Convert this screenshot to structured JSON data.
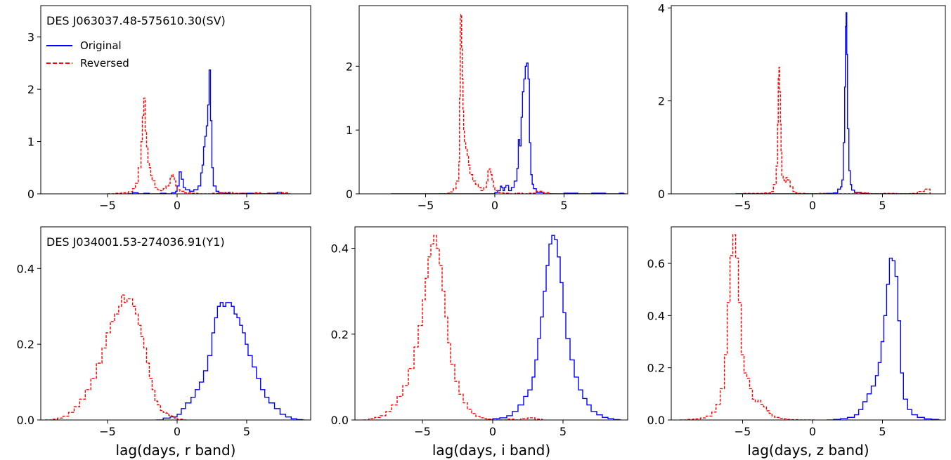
{
  "colors": {
    "original": "#0000ff",
    "reversed": "#ff0000"
  },
  "chart_data": [
    {
      "type": "line",
      "step": true,
      "annotation": "DES J063037.48-575610.30(SV)",
      "legend": {
        "placement": "top-left",
        "entries": [
          "Original",
          "Reversed"
        ]
      },
      "xlabel": "",
      "ylabel": "",
      "xlim": [
        -9.8,
        9.6
      ],
      "ylim": [
        0,
        3.6
      ],
      "xticks": [
        -5,
        0,
        5
      ],
      "yticks": [
        0,
        1,
        2,
        3
      ],
      "series": [
        {
          "name": "Original",
          "style": "solid",
          "x": [
            -3.6,
            -3.2,
            -2.8,
            -2.4,
            -2.0,
            -1.6,
            -1.2,
            -0.8,
            -0.4,
            -0.1,
            0.0,
            0.15,
            0.3,
            0.45,
            0.6,
            0.9,
            1.2,
            1.5,
            1.7,
            1.8,
            1.9,
            2.0,
            2.1,
            2.2,
            2.3,
            2.4,
            2.5,
            2.6,
            2.8,
            3.0,
            3.3,
            3.8,
            4.5,
            5.5,
            6.5,
            7.2,
            7.5,
            7.8
          ],
          "values": [
            0.0,
            0.02,
            0.0,
            0.01,
            0.0,
            0.0,
            0.01,
            0.0,
            0.02,
            0.05,
            0.15,
            0.42,
            0.28,
            0.12,
            0.08,
            0.05,
            0.08,
            0.15,
            0.4,
            0.55,
            0.9,
            1.1,
            1.3,
            1.7,
            2.37,
            1.4,
            0.5,
            0.15,
            0.05,
            0.02,
            0.01,
            0.0,
            0.01,
            0.0,
            0.01,
            0.03,
            0.0,
            0.0
          ]
        },
        {
          "name": "Reversed",
          "style": "dashed",
          "x": [
            -5.0,
            -4.5,
            -4.0,
            -3.5,
            -3.2,
            -3.0,
            -2.8,
            -2.6,
            -2.5,
            -2.4,
            -2.3,
            -2.2,
            -2.1,
            -2.0,
            -1.9,
            -1.8,
            -1.6,
            -1.4,
            -1.2,
            -1.0,
            -0.8,
            -0.6,
            -0.5,
            -0.4,
            -0.3,
            -0.2,
            -0.1,
            0.0,
            0.2,
            0.5,
            1.0,
            1.5,
            2.0,
            2.5,
            3.0,
            3.5,
            4.0,
            5.0,
            5.5,
            6.0,
            6.5,
            7.0,
            7.5,
            8.0
          ],
          "values": [
            0.0,
            0.01,
            0.02,
            0.04,
            0.1,
            0.2,
            0.5,
            1.0,
            1.5,
            1.83,
            1.2,
            0.9,
            0.6,
            0.5,
            0.35,
            0.25,
            0.12,
            0.08,
            0.06,
            0.1,
            0.15,
            0.2,
            0.3,
            0.37,
            0.33,
            0.25,
            0.15,
            0.08,
            0.05,
            0.02,
            0.01,
            0.0,
            0.0,
            0.01,
            0.02,
            0.03,
            0.01,
            0.0,
            0.02,
            0.0,
            0.01,
            0.0,
            0.02,
            0.0
          ]
        }
      ]
    },
    {
      "type": "line",
      "step": true,
      "annotation": "",
      "xlabel": "",
      "ylabel": "",
      "xlim": [
        -9.8,
        9.6
      ],
      "ylim": [
        0,
        2.95
      ],
      "xticks": [
        -5,
        0,
        5
      ],
      "yticks": [
        0,
        1,
        2
      ],
      "series": [
        {
          "name": "Original",
          "style": "solid",
          "x": [
            -7.5,
            -6.0,
            -4.0,
            -3.0,
            -2.0,
            -1.0,
            0.0,
            0.2,
            0.4,
            0.5,
            0.6,
            0.7,
            0.8,
            1.0,
            1.2,
            1.4,
            1.6,
            1.7,
            1.8,
            1.9,
            2.0,
            2.1,
            2.2,
            2.3,
            2.4,
            2.5,
            2.6,
            2.7,
            2.8,
            3.0,
            3.5,
            4.0,
            5.0,
            6.0,
            6.5,
            7.0,
            8.0,
            9.0,
            9.3
          ],
          "values": [
            0.0,
            0.0,
            0.0,
            0.0,
            0.0,
            0.0,
            0.02,
            0.05,
            0.12,
            0.1,
            0.05,
            0.1,
            0.13,
            0.05,
            0.1,
            0.2,
            0.4,
            0.85,
            0.75,
            1.2,
            1.6,
            1.8,
            2.0,
            2.05,
            1.8,
            0.8,
            0.3,
            0.15,
            0.08,
            0.02,
            0.0,
            0.0,
            0.01,
            0.0,
            0.0,
            0.01,
            0.0,
            0.01,
            0.0
          ]
        },
        {
          "name": "Reversed",
          "style": "dashed",
          "x": [
            -4.0,
            -3.5,
            -3.2,
            -3.0,
            -2.8,
            -2.6,
            -2.55,
            -2.5,
            -2.45,
            -2.4,
            -2.35,
            -2.3,
            -2.25,
            -2.2,
            -2.1,
            -2.0,
            -1.9,
            -1.8,
            -1.6,
            -1.4,
            -1.2,
            -1.0,
            -0.8,
            -0.6,
            -0.5,
            -0.4,
            -0.3,
            -0.2,
            -0.1,
            0.0,
            0.3,
            0.6,
            1.0,
            1.5,
            2.0,
            2.5,
            3.0,
            3.5,
            4.0
          ],
          "values": [
            0.0,
            0.01,
            0.03,
            0.08,
            0.2,
            0.5,
            1.5,
            2.75,
            2.81,
            2.3,
            1.8,
            1.3,
            1.0,
            0.8,
            0.7,
            0.6,
            0.45,
            0.3,
            0.2,
            0.15,
            0.1,
            0.05,
            0.1,
            0.2,
            0.36,
            0.39,
            0.3,
            0.2,
            0.1,
            0.05,
            0.02,
            0.01,
            0.0,
            0.01,
            0.0,
            0.01,
            0.04,
            0.02,
            0.0
          ]
        }
      ]
    },
    {
      "type": "line",
      "step": true,
      "annotation": "",
      "xlabel": "",
      "ylabel": "",
      "xlim": [
        -10.1,
        9.5
      ],
      "ylim": [
        0,
        4.05
      ],
      "xticks": [
        -5,
        0,
        5
      ],
      "yticks": [
        0,
        2,
        4
      ],
      "series": [
        {
          "name": "Original",
          "style": "solid",
          "x": [
            -5.5,
            -4.0,
            -3.0,
            -2.0,
            -1.0,
            0.0,
            1.0,
            1.5,
            1.8,
            2.0,
            2.1,
            2.2,
            2.3,
            2.35,
            2.4,
            2.45,
            2.5,
            2.6,
            2.7,
            2.8,
            3.0,
            3.5,
            4.0,
            5.0,
            6.0,
            7.0,
            8.0
          ],
          "values": [
            0.0,
            0.0,
            0.0,
            0.0,
            0.0,
            0.0,
            0.01,
            0.02,
            0.1,
            0.15,
            0.3,
            1.1,
            2.3,
            3.6,
            3.9,
            3.0,
            1.4,
            0.5,
            0.2,
            0.08,
            0.03,
            0.01,
            0.0,
            0.0,
            0.0,
            0.0,
            0.0
          ]
        },
        {
          "name": "Reversed",
          "style": "dashed",
          "x": [
            -5.5,
            -5.0,
            -4.0,
            -3.5,
            -3.0,
            -2.8,
            -2.6,
            -2.5,
            -2.45,
            -2.4,
            -2.35,
            -2.3,
            -2.25,
            -2.2,
            -2.1,
            -2.0,
            -1.9,
            -1.8,
            -1.6,
            -1.4,
            -1.2,
            -1.0,
            -0.5,
            0.0,
            0.5,
            1.0,
            2.0,
            3.0,
            4.0,
            5.0,
            6.0,
            7.0,
            7.5,
            8.0,
            8.4
          ],
          "values": [
            0.0,
            0.01,
            0.01,
            0.02,
            0.05,
            0.2,
            0.6,
            1.5,
            2.5,
            2.72,
            2.2,
            1.5,
            0.9,
            0.4,
            0.3,
            0.25,
            0.35,
            0.3,
            0.15,
            0.05,
            0.02,
            0.01,
            0.0,
            0.0,
            0.01,
            0.0,
            0.0,
            0.02,
            0.0,
            0.01,
            0.0,
            0.01,
            0.05,
            0.1,
            0.0
          ]
        }
      ]
    },
    {
      "type": "line",
      "step": true,
      "annotation": "DES J034001.53-274036.91(Y1)",
      "xlabel": "lag(days, r band)",
      "ylabel": "",
      "xlim": [
        -9.8,
        9.6
      ],
      "ylim": [
        0,
        0.51
      ],
      "xticks": [
        -5,
        0,
        5
      ],
      "yticks": [
        0.0,
        0.2,
        0.4
      ],
      "series": [
        {
          "name": "Original",
          "style": "solid",
          "x": [
            -1.5,
            -1.0,
            -0.5,
            0.0,
            0.3,
            0.6,
            1.0,
            1.3,
            1.6,
            1.9,
            2.2,
            2.5,
            2.7,
            2.9,
            3.1,
            3.3,
            3.5,
            3.7,
            3.9,
            4.1,
            4.3,
            4.5,
            4.7,
            4.9,
            5.1,
            5.4,
            5.7,
            6.0,
            6.3,
            6.6,
            7.0,
            7.4,
            7.8,
            8.2,
            8.6,
            9.0
          ],
          "values": [
            0.0,
            0.005,
            0.008,
            0.015,
            0.03,
            0.045,
            0.06,
            0.08,
            0.1,
            0.13,
            0.17,
            0.23,
            0.27,
            0.3,
            0.31,
            0.3,
            0.31,
            0.31,
            0.3,
            0.28,
            0.27,
            0.25,
            0.23,
            0.2,
            0.17,
            0.14,
            0.11,
            0.08,
            0.06,
            0.045,
            0.03,
            0.015,
            0.008,
            0.003,
            0.001,
            0.0
          ]
        },
        {
          "name": "Reversed",
          "style": "dashed",
          "x": [
            -9.5,
            -9.0,
            -8.6,
            -8.2,
            -7.8,
            -7.4,
            -7.0,
            -6.6,
            -6.2,
            -5.8,
            -5.4,
            -5.1,
            -4.8,
            -4.5,
            -4.2,
            -4.0,
            -3.8,
            -3.6,
            -3.4,
            -3.2,
            -3.0,
            -2.8,
            -2.6,
            -2.4,
            -2.2,
            -2.0,
            -1.8,
            -1.6,
            -1.4,
            -1.2,
            -1.0,
            -0.8,
            -0.6,
            -0.4,
            -0.2,
            0.0,
            0.5
          ],
          "values": [
            0.0,
            0.002,
            0.005,
            0.01,
            0.02,
            0.035,
            0.055,
            0.08,
            0.11,
            0.15,
            0.19,
            0.23,
            0.26,
            0.28,
            0.3,
            0.33,
            0.31,
            0.32,
            0.32,
            0.3,
            0.28,
            0.25,
            0.22,
            0.19,
            0.15,
            0.11,
            0.08,
            0.05,
            0.04,
            0.025,
            0.02,
            0.018,
            0.012,
            0.01,
            0.005,
            0.002,
            0.0
          ]
        }
      ]
    },
    {
      "type": "line",
      "step": true,
      "annotation": "",
      "xlabel": "lag(days, i band)",
      "ylabel": "",
      "xlim": [
        -9.8,
        9.6
      ],
      "ylim": [
        0,
        0.45
      ],
      "xticks": [
        -5,
        0,
        5
      ],
      "yticks": [
        0.0,
        0.2,
        0.4
      ],
      "series": [
        {
          "name": "Original",
          "style": "solid",
          "x": [
            -0.5,
            0.0,
            0.5,
            1.0,
            1.4,
            1.8,
            2.2,
            2.5,
            2.8,
            3.0,
            3.2,
            3.4,
            3.6,
            3.8,
            4.0,
            4.2,
            4.4,
            4.6,
            4.8,
            5.0,
            5.2,
            5.5,
            5.8,
            6.1,
            6.4,
            6.7,
            7.0,
            7.4,
            7.8,
            8.2,
            8.6,
            9.0
          ],
          "values": [
            0.0,
            0.003,
            0.005,
            0.01,
            0.02,
            0.035,
            0.055,
            0.07,
            0.1,
            0.14,
            0.19,
            0.24,
            0.3,
            0.36,
            0.41,
            0.43,
            0.42,
            0.38,
            0.32,
            0.25,
            0.19,
            0.14,
            0.1,
            0.07,
            0.05,
            0.035,
            0.02,
            0.012,
            0.006,
            0.003,
            0.001,
            0.0
          ]
        },
        {
          "name": "Reversed",
          "style": "dashed",
          "x": [
            -9.2,
            -8.8,
            -8.4,
            -8.0,
            -7.6,
            -7.2,
            -6.8,
            -6.4,
            -6.0,
            -5.6,
            -5.3,
            -5.0,
            -4.8,
            -4.6,
            -4.4,
            -4.2,
            -4.0,
            -3.8,
            -3.6,
            -3.4,
            -3.2,
            -3.0,
            -2.7,
            -2.4,
            -2.1,
            -1.8,
            -1.5,
            -1.2,
            -0.9,
            -0.6,
            -0.3,
            0.0,
            0.5,
            1.0,
            1.5,
            2.0,
            2.5,
            3.0,
            3.5
          ],
          "values": [
            0.0,
            0.003,
            0.006,
            0.01,
            0.02,
            0.035,
            0.055,
            0.08,
            0.12,
            0.17,
            0.22,
            0.28,
            0.33,
            0.38,
            0.41,
            0.43,
            0.4,
            0.36,
            0.3,
            0.24,
            0.18,
            0.13,
            0.09,
            0.06,
            0.04,
            0.025,
            0.015,
            0.008,
            0.005,
            0.003,
            0.002,
            0.0,
            0.0,
            0.002,
            0.0,
            0.003,
            0.005,
            0.002,
            0.0
          ]
        }
      ]
    },
    {
      "type": "line",
      "step": true,
      "annotation": "",
      "xlabel": "lag(days, z band)",
      "ylabel": "",
      "xlim": [
        -10.1,
        9.5
      ],
      "ylim": [
        0,
        0.74
      ],
      "xticks": [
        -5,
        0,
        5
      ],
      "yticks": [
        0.0,
        0.2,
        0.4,
        0.6
      ],
      "series": [
        {
          "name": "Original",
          "style": "solid",
          "x": [
            1.0,
            1.5,
            2.0,
            2.5,
            3.0,
            3.3,
            3.6,
            3.9,
            4.2,
            4.5,
            4.7,
            4.9,
            5.1,
            5.3,
            5.5,
            5.7,
            5.9,
            6.1,
            6.3,
            6.5,
            6.8,
            7.1,
            7.5,
            8.0,
            8.5,
            9.0
          ],
          "values": [
            0.0,
            0.002,
            0.005,
            0.01,
            0.02,
            0.04,
            0.07,
            0.1,
            0.13,
            0.17,
            0.22,
            0.3,
            0.4,
            0.52,
            0.62,
            0.61,
            0.55,
            0.38,
            0.18,
            0.08,
            0.04,
            0.02,
            0.01,
            0.004,
            0.002,
            0.0
          ]
        },
        {
          "name": "Reversed",
          "style": "dashed",
          "x": [
            -9.5,
            -9.0,
            -8.5,
            -8.0,
            -7.6,
            -7.2,
            -6.9,
            -6.6,
            -6.3,
            -6.1,
            -5.9,
            -5.7,
            -5.5,
            -5.3,
            -5.1,
            -4.9,
            -4.7,
            -4.5,
            -4.3,
            -4.1,
            -3.9,
            -3.7,
            -3.5,
            -3.3,
            -3.1,
            -2.9,
            -2.7,
            -2.4,
            -2.1,
            -1.8,
            -1.5,
            -1.0,
            -0.5,
            0.0
          ],
          "values": [
            0.0,
            0.002,
            0.004,
            0.008,
            0.015,
            0.03,
            0.06,
            0.12,
            0.25,
            0.45,
            0.63,
            0.71,
            0.62,
            0.45,
            0.25,
            0.18,
            0.16,
            0.12,
            0.08,
            0.07,
            0.075,
            0.06,
            0.05,
            0.035,
            0.025,
            0.015,
            0.01,
            0.006,
            0.004,
            0.002,
            0.001,
            0.0,
            0.0,
            0.0
          ]
        }
      ]
    }
  ]
}
